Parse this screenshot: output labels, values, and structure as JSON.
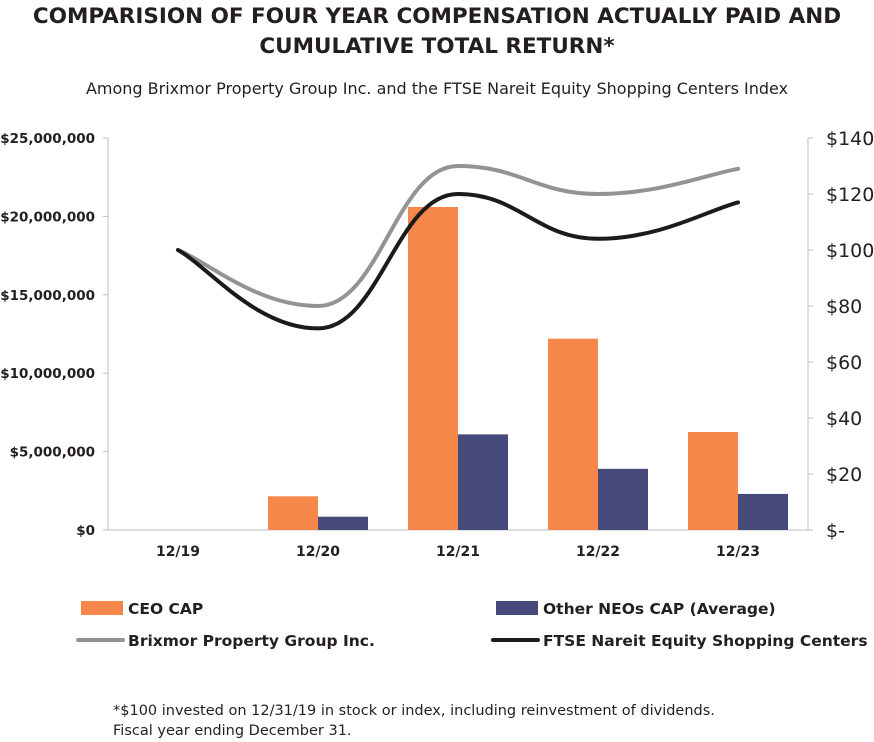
{
  "chart_data": {
    "type": "bar",
    "title_line1": "COMPARISION OF FOUR YEAR COMPENSATION ACTUALLY PAID AND",
    "title_line2": "CUMULATIVE TOTAL RETURN*",
    "subtitle": "Among Brixmor Property Group Inc. and the FTSE Nareit Equity Shopping Centers Index",
    "categories": [
      "12/19",
      "12/20",
      "12/21",
      "12/22",
      "12/23"
    ],
    "left_axis": {
      "ylim": [
        0,
        25000000
      ],
      "ticks": [
        0,
        5000000,
        10000000,
        15000000,
        20000000,
        25000000
      ],
      "tick_labels": [
        "$0",
        "$5,000,000",
        "$10,000,000",
        "$15,000,000",
        "$20,000,000",
        "$25,000,000"
      ]
    },
    "right_axis": {
      "ylim": [
        0,
        140
      ],
      "ticks": [
        0,
        20,
        40,
        60,
        80,
        100,
        120,
        140
      ],
      "tick_labels": [
        "$-",
        "$20",
        "$40",
        "$60",
        "$80",
        "$100",
        "$120",
        "$140"
      ]
    },
    "bar_series": [
      {
        "name": "CEO CAP",
        "color": "#f5874b",
        "values": [
          0,
          2150000,
          20600000,
          12200000,
          6250000
        ]
      },
      {
        "name": "Other NEOs CAP (Average)",
        "color": "#464a7a",
        "values": [
          0,
          850000,
          6100000,
          3900000,
          2300000
        ]
      }
    ],
    "line_series": [
      {
        "name": "Brixmor Property Group Inc.",
        "color": "#939393",
        "values": [
          100,
          80,
          130,
          120,
          129
        ]
      },
      {
        "name": "FTSE Nareit Equity Shopping Centers",
        "color": "#1b1b1b",
        "values": [
          100,
          72,
          120,
          104,
          117
        ]
      }
    ],
    "legend": [
      {
        "label": "CEO CAP",
        "kind": "bar",
        "color": "#f5874b"
      },
      {
        "label": "Other NEOs CAP (Average)",
        "kind": "bar",
        "color": "#464a7a"
      },
      {
        "label": "Brixmor Property Group Inc.",
        "kind": "line",
        "color": "#939393"
      },
      {
        "label": "FTSE Nareit Equity Shopping Centers",
        "kind": "line",
        "color": "#1b1b1b"
      }
    ],
    "legend_position": "bottom"
  },
  "footnote": {
    "line1": "*$100 invested on 12/31/19 in stock or index, including reinvestment of dividends.",
    "line2": "Fiscal year ending December 31."
  }
}
